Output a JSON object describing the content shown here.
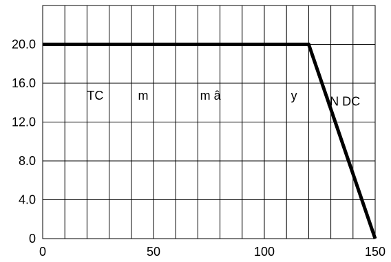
{
  "chart_data": {
    "type": "line",
    "title": "",
    "xlabel": "",
    "ylabel": "",
    "xlim": [
      0,
      150
    ],
    "ylim": [
      0,
      24
    ],
    "grid": true,
    "x_gridlines": [
      10,
      20,
      30,
      40,
      50,
      60,
      70,
      80,
      90,
      100,
      110,
      120,
      130,
      140
    ],
    "y_gridlines": [
      4,
      8,
      12,
      16,
      20
    ],
    "x_ticks": [
      {
        "value": 0,
        "label": "0"
      },
      {
        "value": 50,
        "label": "50"
      },
      {
        "value": 100,
        "label": "100"
      },
      {
        "value": 150,
        "label": "150"
      }
    ],
    "y_ticks": [
      {
        "value": 0,
        "label": "0"
      },
      {
        "value": 4,
        "label": "4.0"
      },
      {
        "value": 8,
        "label": "8.0"
      },
      {
        "value": 12,
        "label": "12.0"
      },
      {
        "value": 16,
        "label": "16.0"
      },
      {
        "value": 20,
        "label": "20.0"
      }
    ],
    "series": [
      {
        "x": [
          0,
          120,
          150
        ],
        "y": [
          20,
          20,
          0
        ],
        "color": "#000000"
      }
    ],
    "annotations": [
      {
        "text": "TC",
        "x": 20,
        "y": 14.3
      },
      {
        "text": "m",
        "x": 43,
        "y": 14.3
      },
      {
        "text": "m â",
        "x": 71,
        "y": 14.3
      },
      {
        "text": "y",
        "x": 112,
        "y": 14.3
      },
      {
        "text": "IN DC",
        "x": 128,
        "y": 13.7
      }
    ]
  }
}
